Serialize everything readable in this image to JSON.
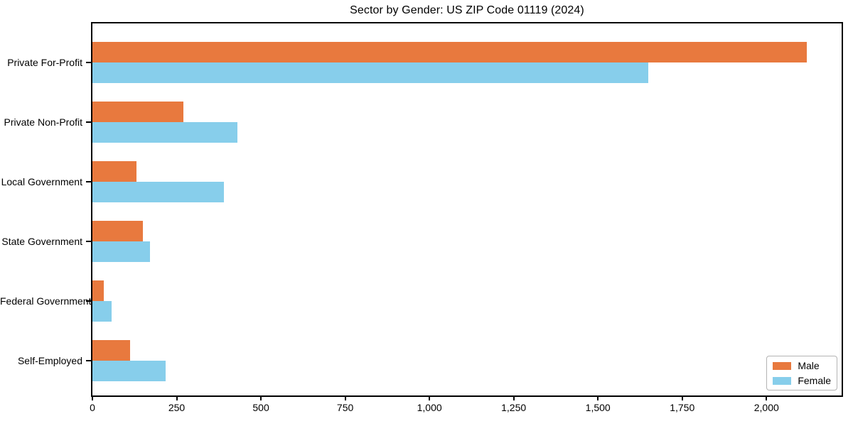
{
  "chart_data": {
    "type": "bar",
    "orientation": "horizontal",
    "title": "Sector by Gender: US ZIP Code 01119 (2024)",
    "xlabel": "",
    "ylabel": "",
    "categories": [
      "Private For-Profit",
      "Private Non-Profit",
      "Local Government",
      "State Government",
      "Federal Government",
      "Self-Employed"
    ],
    "series": [
      {
        "name": "Male",
        "color": "#e8793e",
        "values": [
          2120,
          270,
          130,
          150,
          34,
          112
        ]
      },
      {
        "name": "Female",
        "color": "#87ceeb",
        "values": [
          1650,
          430,
          390,
          170,
          57,
          218
        ]
      }
    ],
    "xlim": [
      0,
      2223
    ],
    "xticks": [
      0,
      250,
      500,
      750,
      1000,
      1250,
      1500,
      1750,
      2000
    ],
    "xtick_labels": [
      "0",
      "250",
      "500",
      "750",
      "1,000",
      "1,250",
      "1,500",
      "1,750",
      "2,000"
    ],
    "grid": false,
    "legend": {
      "position": "lower right",
      "entries": [
        "Male",
        "Female"
      ]
    }
  },
  "colors": {
    "male": "#e8793e",
    "female": "#87ceeb",
    "spine": "#000000",
    "text": "#000000",
    "legend_border": "#b3b3b3",
    "background": "#ffffff"
  }
}
